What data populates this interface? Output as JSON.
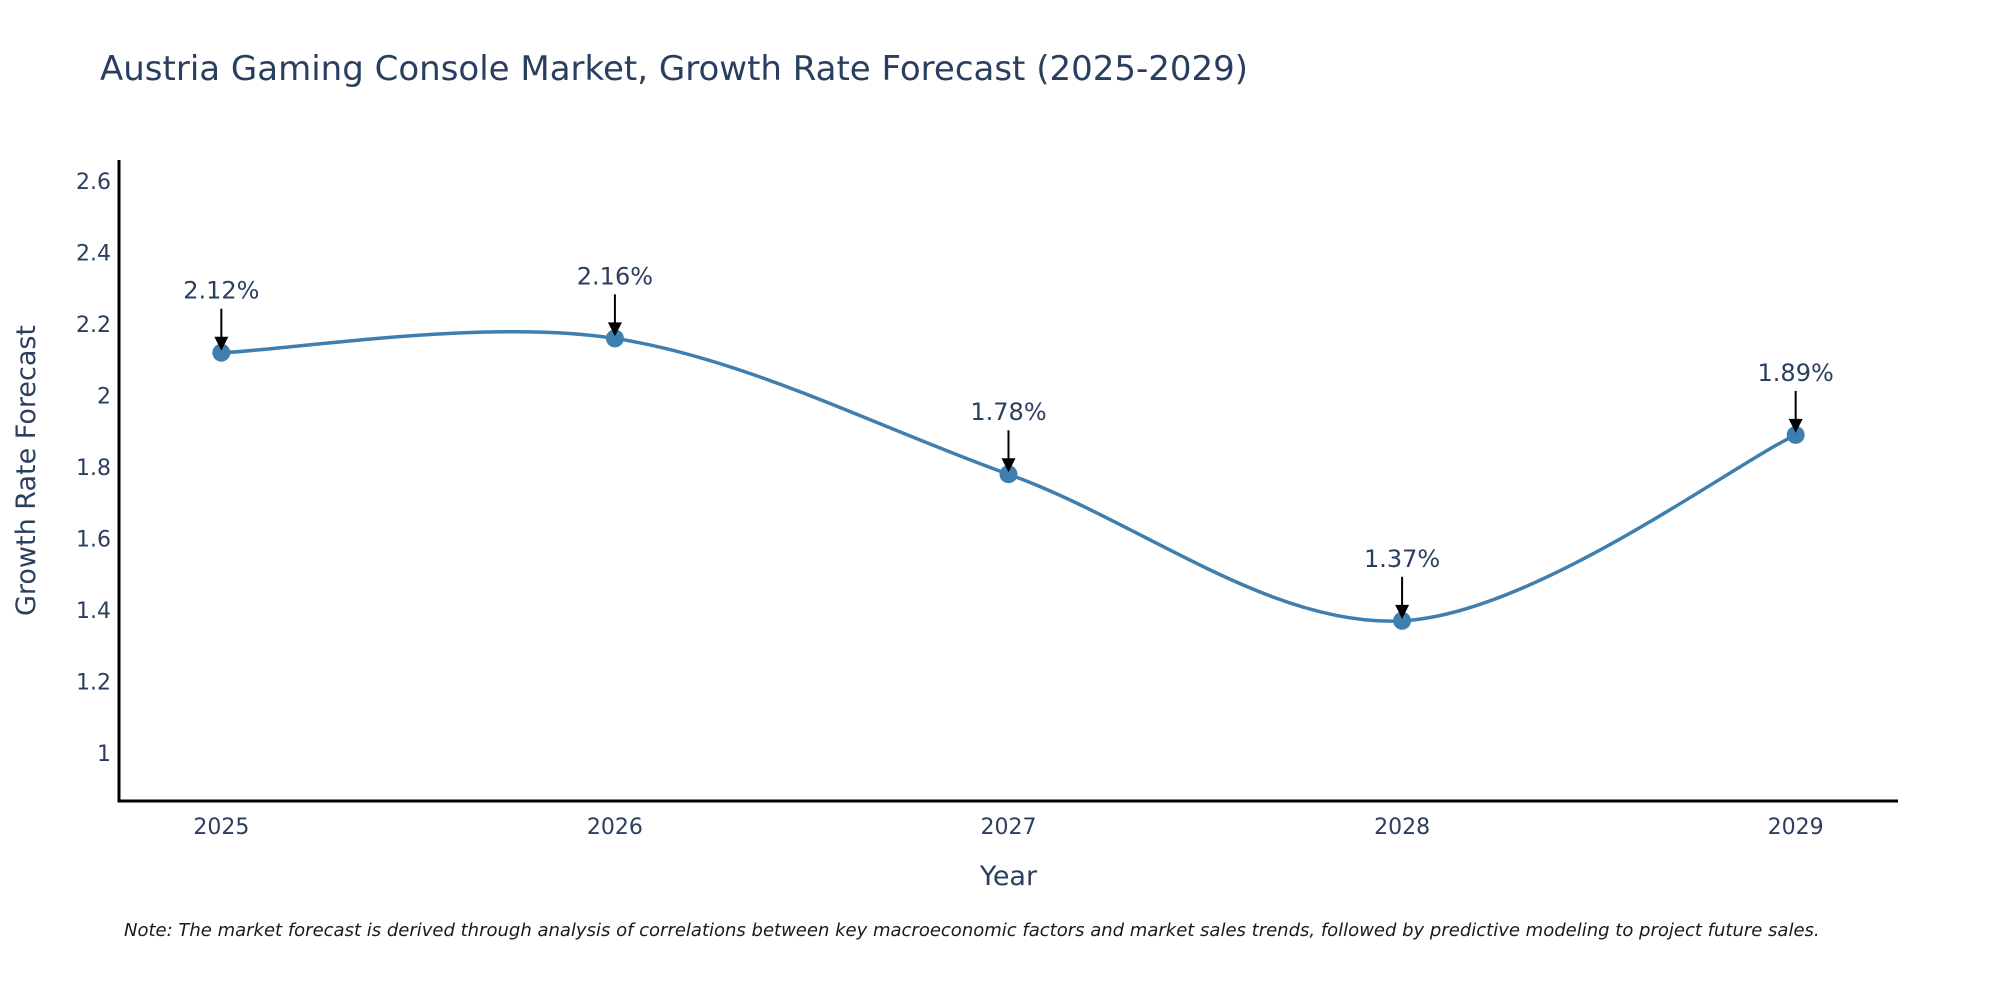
{
  "chart_data": {
    "type": "line",
    "title": "Austria Gaming Console Market, Growth Rate Forecast (2025-2029)",
    "xlabel": "Year",
    "ylabel": "Growth Rate Forecast",
    "categories": [
      "2025",
      "2026",
      "2027",
      "2028",
      "2029"
    ],
    "series": [
      {
        "name": "Growth Rate Forecast",
        "values": [
          2.12,
          2.16,
          1.78,
          1.37,
          1.89
        ],
        "color": "#3f7fb0",
        "line_shape": "spline",
        "markers": true
      }
    ],
    "annotations": [
      "2.12%",
      "2.16%",
      "1.78%",
      "1.37%",
      "1.89%"
    ],
    "yticks": [
      1,
      1.2,
      1.4,
      1.6,
      1.8,
      2,
      2.2,
      2.4,
      2.6
    ],
    "ytick_labels": [
      "1",
      "1.2",
      "1.4",
      "1.6",
      "1.8",
      "2",
      "2.2",
      "2.4",
      "2.6"
    ],
    "ylim": [
      0.866,
      2.659
    ],
    "xlim": [
      2024.74,
      2029.26
    ],
    "grid": false,
    "legend": "none",
    "note": "Note: The market forecast is derived through analysis of correlations between key macroeconomic factors and market sales trends, followed by predictive modeling to project future sales."
  }
}
